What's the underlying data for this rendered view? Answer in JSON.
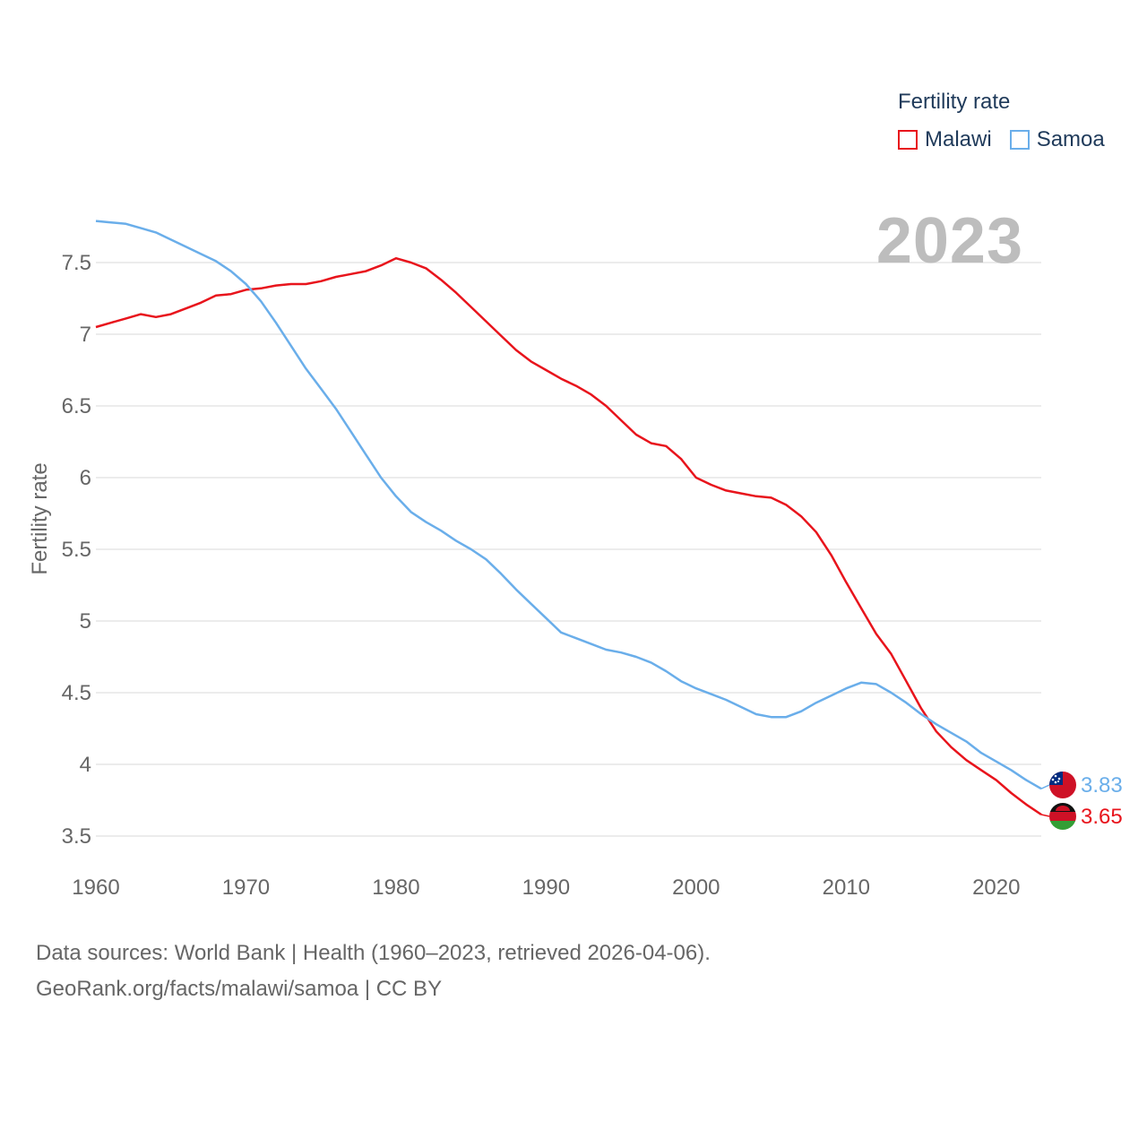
{
  "legend": {
    "title": "Fertility rate",
    "items": [
      {
        "label": "Malawi",
        "color": "#e8141c"
      },
      {
        "label": "Samoa",
        "color": "#6aaeea"
      }
    ]
  },
  "year_label": "2023",
  "footer": {
    "line1": "Data sources: World Bank | Health (1960–2023, retrieved 2026-04-06).",
    "line2": "GeoRank.org/facts/malawi/samoa | CC BY"
  },
  "chart_data": {
    "type": "line",
    "title": "",
    "xlabel": "",
    "ylabel": "Fertility rate",
    "xlim": [
      1960,
      2023
    ],
    "ylim": [
      3.5,
      7.8
    ],
    "x_ticks": [
      1960,
      1970,
      1980,
      1990,
      2000,
      2010,
      2020
    ],
    "y_ticks": [
      3.5,
      4,
      4.5,
      5,
      5.5,
      6,
      6.5,
      7,
      7.5
    ],
    "y_tick_labels": [
      "3.5",
      "4",
      "4.5",
      "5",
      "5.5",
      "6",
      "6.5",
      "7",
      "7.5"
    ],
    "x": [
      1960,
      1961,
      1962,
      1963,
      1964,
      1965,
      1966,
      1967,
      1968,
      1969,
      1970,
      1971,
      1972,
      1973,
      1974,
      1975,
      1976,
      1977,
      1978,
      1979,
      1980,
      1981,
      1982,
      1983,
      1984,
      1985,
      1986,
      1987,
      1988,
      1989,
      1990,
      1991,
      1992,
      1993,
      1994,
      1995,
      1996,
      1997,
      1998,
      1999,
      2000,
      2001,
      2002,
      2003,
      2004,
      2005,
      2006,
      2007,
      2008,
      2009,
      2010,
      2011,
      2012,
      2013,
      2014,
      2015,
      2016,
      2017,
      2018,
      2019,
      2020,
      2021,
      2022,
      2023
    ],
    "series": [
      {
        "name": "Malawi",
        "color": "#e8141c",
        "end_label": "3.65",
        "values": [
          7.05,
          7.08,
          7.11,
          7.14,
          7.12,
          7.14,
          7.18,
          7.22,
          7.27,
          7.28,
          7.31,
          7.32,
          7.34,
          7.35,
          7.35,
          7.37,
          7.4,
          7.42,
          7.44,
          7.48,
          7.53,
          7.5,
          7.46,
          7.38,
          7.29,
          7.19,
          7.09,
          6.99,
          6.89,
          6.81,
          6.75,
          6.69,
          6.64,
          6.58,
          6.5,
          6.4,
          6.3,
          6.24,
          6.22,
          6.13,
          6.0,
          5.95,
          5.91,
          5.89,
          5.87,
          5.86,
          5.81,
          5.73,
          5.62,
          5.46,
          5.27,
          5.09,
          4.91,
          4.77,
          4.58,
          4.39,
          4.23,
          4.12,
          4.03,
          3.96,
          3.89,
          3.8,
          3.72,
          3.65
        ]
      },
      {
        "name": "Samoa",
        "color": "#6aaeea",
        "end_label": "3.83",
        "values": [
          7.79,
          7.78,
          7.77,
          7.74,
          7.71,
          7.66,
          7.61,
          7.56,
          7.51,
          7.44,
          7.35,
          7.23,
          7.08,
          6.92,
          6.76,
          6.62,
          6.48,
          6.32,
          6.16,
          6.0,
          5.87,
          5.76,
          5.69,
          5.63,
          5.56,
          5.5,
          5.43,
          5.33,
          5.22,
          5.12,
          5.02,
          4.92,
          4.88,
          4.84,
          4.8,
          4.78,
          4.75,
          4.71,
          4.65,
          4.58,
          4.53,
          4.49,
          4.45,
          4.4,
          4.35,
          4.33,
          4.33,
          4.37,
          4.43,
          4.48,
          4.53,
          4.57,
          4.56,
          4.5,
          4.43,
          4.35,
          4.28,
          4.22,
          4.16,
          4.08,
          4.02,
          3.96,
          3.89,
          3.83
        ]
      }
    ]
  }
}
